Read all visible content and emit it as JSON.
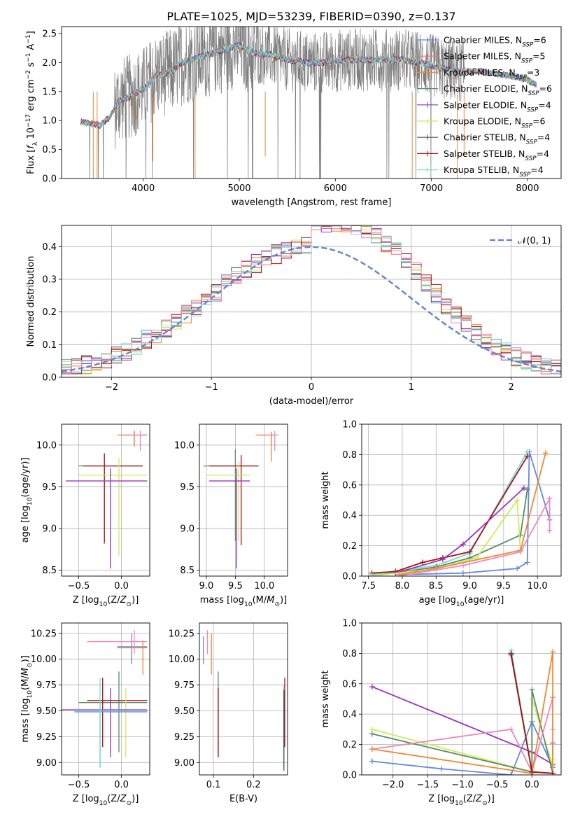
{
  "figure_title": "PLATE=1025, MJD=53239, FIBERID=0390, z=0.137",
  "colors": {
    "c1": "#6688dd",
    "c2": "#ee7766",
    "c3": "#ee8833",
    "c4": "#5a8a6a",
    "c5": "#9933bb",
    "c6": "#ccee55",
    "c7": "#555555",
    "c8": "#aa1111",
    "c9": "#77dddd",
    "pink": "#ee88bb",
    "grid": "#b0b0b0",
    "dash": "#6688cc"
  },
  "chart_data": [
    {
      "id": "spectrum",
      "type": "line",
      "xlabel": "wavelength [Angstrom, rest frame]",
      "ylabel": "Flux [f_λ 10^-17 erg cm^-2 s^-1 A^-1]",
      "xlim": [
        3150,
        8350
      ],
      "ylim": [
        0,
        2.62
      ],
      "xticks": [
        4000,
        5000,
        6000,
        7000,
        8000
      ],
      "yticks": [
        0.0,
        0.5,
        1.0,
        1.5,
        2.0,
        2.5
      ],
      "grid": false,
      "legend_position": "right",
      "legend": [
        {
          "label": "Chabrier MILES, N_SSP=6",
          "color": "c1"
        },
        {
          "label": "Salpeter MILES, N_SSP=5",
          "color": "c2"
        },
        {
          "label": "Kroupa MILES, N_SSP=3",
          "color": "c3"
        },
        {
          "label": "Chabrier ELODIE, N_SSP=6",
          "color": "c4"
        },
        {
          "label": "Salpeter ELODIE, N_SSP=4",
          "color": "c5"
        },
        {
          "label": "Kroupa ELODIE, N_SSP=6",
          "color": "c6"
        },
        {
          "label": "Chabrier STELIB, N_SSP=4",
          "color": "c7"
        },
        {
          "label": "Salpeter STELIB, N_SSP=4",
          "color": "c8"
        },
        {
          "label": "Kroupa STELIB, N_SSP=4",
          "color": "c9"
        }
      ],
      "continuum": [
        [
          3350,
          0.98
        ],
        [
          3450,
          0.95
        ],
        [
          3550,
          0.92
        ],
        [
          3650,
          1.05
        ],
        [
          3750,
          1.35
        ],
        [
          3800,
          1.38
        ],
        [
          3850,
          1.4
        ],
        [
          3900,
          1.45
        ],
        [
          3950,
          1.5
        ],
        [
          4000,
          1.55
        ],
        [
          4050,
          1.6
        ],
        [
          4100,
          1.75
        ],
        [
          4200,
          1.8
        ],
        [
          4300,
          1.85
        ],
        [
          4400,
          2.0
        ],
        [
          4500,
          2.05
        ],
        [
          4600,
          2.1
        ],
        [
          4700,
          2.15
        ],
        [
          4800,
          2.2
        ],
        [
          4900,
          2.25
        ],
        [
          5000,
          2.3
        ],
        [
          5100,
          2.2
        ],
        [
          5200,
          2.15
        ],
        [
          5300,
          2.15
        ],
        [
          5500,
          2.05
        ],
        [
          5700,
          2.0
        ],
        [
          5900,
          2.0
        ],
        [
          6100,
          2.05
        ],
        [
          6300,
          2.05
        ],
        [
          6500,
          2.05
        ],
        [
          6700,
          2.05
        ],
        [
          6900,
          2.0
        ],
        [
          7100,
          1.9
        ],
        [
          7300,
          1.85
        ],
        [
          7500,
          1.85
        ],
        [
          7700,
          1.8
        ],
        [
          7900,
          1.75
        ],
        [
          8000,
          1.7
        ],
        [
          8100,
          1.6
        ]
      ],
      "data_range": [
        3350,
        7350
      ]
    },
    {
      "id": "residuals",
      "type": "histogram",
      "xlabel": "(data-model)/error",
      "ylabel": "Normed distribution",
      "xlim": [
        -2.5,
        2.5
      ],
      "ylim": [
        0,
        0.465
      ],
      "xticks": [
        -2,
        -1,
        0,
        1,
        2
      ],
      "yticks": [
        0.0,
        0.1,
        0.2,
        0.3,
        0.4
      ],
      "grid": true,
      "legend_position": "top-right",
      "legend": [
        {
          "label": "𝒩(0, 1)",
          "style": "dashed",
          "color": "dash"
        }
      ],
      "bin_width": 0.1
    },
    {
      "id": "age-vs-Z",
      "type": "errorbar",
      "xlabel": "Z [log10(Z/Z⊙)]",
      "ylabel": "age  [log10(age/yr)]",
      "xlim": [
        -0.7,
        0.33
      ],
      "ylim": [
        8.43,
        10.25
      ],
      "xticks": [
        -0.5,
        0.0
      ],
      "yticks": [
        8.5,
        9.0,
        9.5,
        10.0
      ],
      "grid": true,
      "points": [
        {
          "c": "c1",
          "x": 0.15,
          "xe": [
            0.0,
            0.3
          ],
          "y": 10.12,
          "ye": [
            10.0,
            10.17
          ]
        },
        {
          "c": "c3",
          "x": 0.15,
          "xe": [
            -0.05,
            0.3
          ],
          "y": 10.12,
          "ye": [
            9.98,
            10.17
          ]
        },
        {
          "c": "pink",
          "x": 0.22,
          "xe": [
            0.12,
            0.3
          ],
          "y": 10.12,
          "ye": [
            9.93,
            10.17
          ]
        },
        {
          "c": "c4",
          "x": -0.2,
          "xe": [
            -0.5,
            0.25
          ],
          "y": 9.75,
          "ye": [
            8.85,
            9.9
          ]
        },
        {
          "c": "c8",
          "x": -0.2,
          "xe": [
            -0.45,
            0.25
          ],
          "y": 9.75,
          "ye": [
            8.82,
            9.9
          ]
        },
        {
          "c": "c6",
          "x": -0.03,
          "xe": [
            -0.5,
            0.3
          ],
          "y": 9.64,
          "ye": [
            8.67,
            9.85
          ]
        },
        {
          "c": "c5",
          "x": -0.13,
          "xe": [
            -0.65,
            0.3
          ],
          "y": 9.57,
          "ye": [
            8.52,
            9.72
          ]
        }
      ]
    },
    {
      "id": "age-vs-mass",
      "type": "errorbar",
      "xlabel": "mass [log10(M/M⊙)]",
      "ylabel": "",
      "xlim": [
        8.88,
        10.4
      ],
      "ylim": [
        8.43,
        10.25
      ],
      "xticks": [
        9.0,
        9.5,
        10.0
      ],
      "yticks": [
        8.5,
        9.0,
        9.5,
        10.0
      ],
      "grid": true,
      "points": [
        {
          "c": "c1",
          "x": 10.12,
          "xe": [
            9.9,
            10.2
          ],
          "y": 10.12,
          "ye": [
            10.0,
            10.16
          ]
        },
        {
          "c": "c3",
          "x": 10.12,
          "xe": [
            9.85,
            10.2
          ],
          "y": 10.12,
          "ye": [
            9.8,
            10.16
          ]
        },
        {
          "c": "pink",
          "x": 10.18,
          "xe": [
            10.0,
            10.25
          ],
          "y": 10.12,
          "ye": [
            9.93,
            10.17
          ]
        },
        {
          "c": "c4",
          "x": 9.5,
          "xe": [
            8.95,
            9.9
          ],
          "y": 9.75,
          "ye": [
            8.85,
            9.95
          ]
        },
        {
          "c": "c8",
          "x": 9.6,
          "xe": [
            9.05,
            9.9
          ],
          "y": 9.75,
          "ye": [
            8.8,
            9.88
          ]
        },
        {
          "c": "c6",
          "x": 9.55,
          "xe": [
            9.0,
            9.75
          ],
          "y": 9.64,
          "ye": [
            8.85,
            9.8
          ]
        },
        {
          "c": "c5",
          "x": 9.52,
          "xe": [
            9.05,
            9.75
          ],
          "y": 9.57,
          "ye": [
            8.52,
            9.72
          ]
        }
      ]
    },
    {
      "id": "massweight-vs-age",
      "type": "line",
      "xlabel": "age  [log10(age/yr)]",
      "ylabel": "mass weight",
      "xlim": [
        7.4,
        10.35
      ],
      "ylim": [
        0,
        1.0
      ],
      "xticks": [
        7.5,
        8.0,
        8.5,
        9.0,
        9.5,
        10.0
      ],
      "yticks": [
        0.0,
        0.2,
        0.4,
        0.6,
        0.8,
        1.0
      ],
      "grid": true,
      "series": [
        {
          "c": "c1",
          "x": [
            7.95,
            8.9,
            9.7,
            9.85,
            9.88,
            10.18
          ],
          "y": [
            0.01,
            0.02,
            0.05,
            0.09,
            0.82,
            0.37
          ]
        },
        {
          "c": "c9",
          "x": [
            7.55,
            8.5,
            9.0,
            9.85
          ],
          "y": [
            0.01,
            0.07,
            0.15,
            0.82
          ]
        },
        {
          "c": "c8",
          "x": [
            7.55,
            7.9,
            8.3,
            8.6,
            9.0,
            9.85
          ],
          "y": [
            0.02,
            0.03,
            0.09,
            0.12,
            0.16,
            0.79
          ]
        },
        {
          "c": "c4",
          "x": [
            7.55,
            8.5,
            9.0,
            9.75,
            9.85
          ],
          "y": [
            0.0,
            0.06,
            0.12,
            0.27,
            0.57
          ]
        },
        {
          "c": "c5",
          "x": [
            7.9,
            8.6,
            8.9,
            9.8
          ],
          "y": [
            0.02,
            0.11,
            0.21,
            0.58
          ]
        },
        {
          "c": "c6",
          "x": [
            7.55,
            8.5,
            9.1,
            9.7,
            9.75
          ],
          "y": [
            0.0,
            0.05,
            0.12,
            0.5,
            0.16
          ]
        },
        {
          "c": "c3",
          "x": [
            7.95,
            8.5,
            9.75,
            10.12
          ],
          "y": [
            0.01,
            0.05,
            0.17,
            0.81
          ]
        },
        {
          "c": "pink",
          "x": [
            7.95,
            8.9,
            9.75,
            10.18,
            10.18
          ],
          "y": [
            0.0,
            0.07,
            0.16,
            0.51,
            0.3
          ]
        }
      ]
    },
    {
      "id": "mass-vs-Z",
      "type": "errorbar",
      "xlabel": "Z [log10(Z/Z⊙)]",
      "ylabel": "mass [log10(M/M⊙)]",
      "xlim": [
        -0.7,
        0.33
      ],
      "ylim": [
        8.88,
        10.35
      ],
      "xticks": [
        -0.5,
        0.0
      ],
      "yticks": [
        9.0,
        9.25,
        9.5,
        9.75,
        10.0,
        10.25
      ],
      "grid": true,
      "points": [
        {
          "c": "c1",
          "x": 0.12,
          "xe": [
            -0.05,
            0.3
          ],
          "y": 10.12,
          "ye": [
            9.95,
            10.25
          ]
        },
        {
          "c": "c3",
          "x": 0.25,
          "xe": [
            -0.05,
            0.3
          ],
          "y": 10.11,
          "ye": [
            9.85,
            10.18
          ]
        },
        {
          "c": "pink",
          "x": 0.15,
          "xe": [
            -0.4,
            0.3
          ],
          "y": 10.17,
          "ye": [
            10.05,
            10.28
          ]
        },
        {
          "c": "c4",
          "x": -0.03,
          "xe": [
            -0.5,
            0.3
          ],
          "y": 9.58,
          "ye": [
            9.1,
            9.88
          ]
        },
        {
          "c": "c8",
          "x": -0.22,
          "xe": [
            -0.4,
            0.3
          ],
          "y": 9.6,
          "ye": [
            9.15,
            9.82
          ]
        },
        {
          "c": "c6",
          "x": 0.05,
          "xe": [
            -0.7,
            0.3
          ],
          "y": 9.51,
          "ye": [
            9.05,
            9.72
          ]
        },
        {
          "c": "c5",
          "x": -0.13,
          "xe": [
            -0.7,
            0.3
          ],
          "y": 9.51,
          "ye": [
            9.05,
            9.72
          ]
        },
        {
          "c": "c1",
          "x": -0.25,
          "xe": [
            -0.55,
            0.3
          ],
          "y": 9.49,
          "ye": [
            8.95,
            9.6
          ]
        },
        {
          "c": "c9",
          "x": -0.25,
          "xe": [
            -0.55,
            0.3
          ],
          "y": 9.5,
          "ye": [
            8.95,
            9.82
          ]
        }
      ]
    },
    {
      "id": "mass-vs-EBV",
      "type": "errorbar",
      "xlabel": "E(B-V)",
      "ylabel": "",
      "xlim": [
        0.065,
        0.285
      ],
      "ylim": [
        8.88,
        10.35
      ],
      "xticks": [
        0.1,
        0.2
      ],
      "yticks": [
        9.0,
        9.25,
        9.5,
        9.75,
        10.0,
        10.25
      ],
      "grid": true,
      "points": [
        {
          "c": "c1",
          "x": 0.075,
          "xe": [
            0.075,
            0.075
          ],
          "y": 10.05,
          "ye": [
            9.95,
            10.22
          ]
        },
        {
          "c": "pink",
          "x": 0.085,
          "xe": [
            0.085,
            0.085
          ],
          "y": 10.1,
          "ye": [
            10.05,
            10.28
          ]
        },
        {
          "c": "c3",
          "x": 0.095,
          "xe": [
            0.095,
            0.095
          ],
          "y": 10.0,
          "ye": [
            9.85,
            10.25
          ]
        },
        {
          "c": "c4",
          "x": 0.112,
          "xe": [
            0.112,
            0.112
          ],
          "y": 9.5,
          "ye": [
            9.05,
            9.88
          ]
        },
        {
          "c": "c8",
          "x": 0.112,
          "xe": [
            0.112,
            0.112
          ],
          "y": 9.4,
          "ye": [
            9.05,
            9.72
          ]
        },
        {
          "c": "c9",
          "x": 0.275,
          "xe": [
            0.275,
            0.275
          ],
          "y": 9.2,
          "ye": [
            8.95,
            9.75
          ]
        },
        {
          "c": "c8",
          "x": 0.278,
          "xe": [
            0.278,
            0.278
          ],
          "y": 9.5,
          "ye": [
            9.15,
            9.82
          ]
        },
        {
          "c": "c7",
          "x": 0.276,
          "xe": [
            0.276,
            0.276
          ],
          "y": 9.45,
          "ye": [
            8.92,
            9.7
          ]
        }
      ]
    },
    {
      "id": "massweight-vs-Z",
      "type": "line",
      "xlabel": "Z [log10(Z/Z⊙)]",
      "ylabel": "mass weight",
      "xlim": [
        -2.45,
        0.42
      ],
      "ylim": [
        0,
        1.0
      ],
      "xticks": [
        -2.0,
        -1.5,
        -1.0,
        -0.5,
        0.0
      ],
      "yticks": [
        0.0,
        0.2,
        0.4,
        0.6,
        0.8,
        1.0
      ],
      "grid": true,
      "series": [
        {
          "c": "c1",
          "x": [
            -2.3,
            -1.3,
            -0.3,
            0.0,
            0.3
          ],
          "y": [
            0.09,
            0.04,
            0.0,
            0.35,
            0.05
          ]
        },
        {
          "c": "c5",
          "x": [
            -2.3,
            0.0,
            0.3,
            0.3
          ],
          "y": [
            0.58,
            0.15,
            0.07,
            0.21
          ]
        },
        {
          "c": "c6",
          "x": [
            -2.3,
            0.0,
            0.0,
            0.3,
            0.3
          ],
          "y": [
            0.3,
            0.02,
            0.5,
            0.06,
            0.1
          ]
        },
        {
          "c": "c4",
          "x": [
            -2.3,
            0.0,
            0.0,
            0.3
          ],
          "y": [
            0.27,
            0.02,
            0.56,
            0.01
          ]
        },
        {
          "c": "pink",
          "x": [
            -2.3,
            -0.3,
            0.0,
            0.3,
            0.3
          ],
          "y": [
            0.17,
            0.3,
            0.02,
            0.51,
            0.3
          ]
        },
        {
          "c": "c3",
          "x": [
            -2.3,
            0.0,
            0.3,
            0.3
          ],
          "y": [
            0.17,
            0.01,
            0.81,
            0.01
          ]
        },
        {
          "c": "c9",
          "x": [
            -0.3,
            0.0,
            0.3
          ],
          "y": [
            0.82,
            0.02,
            0.01
          ]
        },
        {
          "c": "c7",
          "x": [
            -0.3,
            -0.3,
            0.0,
            0.3
          ],
          "y": [
            0.8,
            0.8,
            0.02,
            0.01
          ]
        },
        {
          "c": "c8",
          "x": [
            -0.3,
            0.0,
            0.3
          ],
          "y": [
            0.79,
            0.02,
            0.01
          ]
        }
      ]
    }
  ]
}
